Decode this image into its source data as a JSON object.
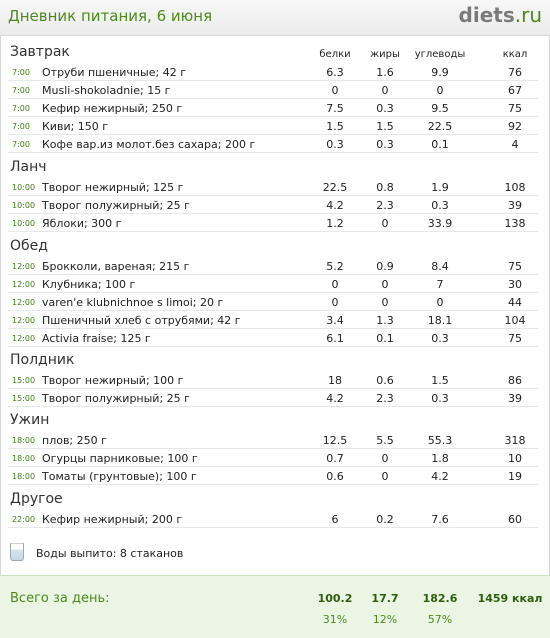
{
  "header": {
    "title": "Дневник питания, 6 июня",
    "logo_main": "diets",
    "logo_tld": ".ru"
  },
  "columns": {
    "protein": "белки",
    "fat": "жиры",
    "carbs": "углеводы",
    "kcal": "ккал"
  },
  "meals": [
    {
      "title": "Завтрак",
      "items": [
        {
          "time": "7:00",
          "name": "Отруби пшеничные; 42 г",
          "protein": "6.3",
          "fat": "1.6",
          "carbs": "9.9",
          "kcal": "76"
        },
        {
          "time": "7:00",
          "name": "Musli-shokoladnie; 15 г",
          "protein": "0",
          "fat": "0",
          "carbs": "0",
          "kcal": "67"
        },
        {
          "time": "7:00",
          "name": "Кефир нежирный; 250 г",
          "protein": "7.5",
          "fat": "0.3",
          "carbs": "9.5",
          "kcal": "75"
        },
        {
          "time": "7:00",
          "name": "Киви; 150 г",
          "protein": "1.5",
          "fat": "1.5",
          "carbs": "22.5",
          "kcal": "92"
        },
        {
          "time": "7:00",
          "name": "Кофе вар.из молот.без сахара; 200 г",
          "protein": "0.3",
          "fat": "0.3",
          "carbs": "0.1",
          "kcal": "4"
        }
      ]
    },
    {
      "title": "Ланч",
      "items": [
        {
          "time": "10:00",
          "name": "Творог нежирный; 125 г",
          "protein": "22.5",
          "fat": "0.8",
          "carbs": "1.9",
          "kcal": "108"
        },
        {
          "time": "10:00",
          "name": "Творог полужирный; 25 г",
          "protein": "4.2",
          "fat": "2.3",
          "carbs": "0.3",
          "kcal": "39"
        },
        {
          "time": "10:00",
          "name": "Яблоки; 300 г",
          "protein": "1.2",
          "fat": "0",
          "carbs": "33.9",
          "kcal": "138"
        }
      ]
    },
    {
      "title": "Обед",
      "items": [
        {
          "time": "12:00",
          "name": "Брокколи, вареная; 215 г",
          "protein": "5.2",
          "fat": "0.9",
          "carbs": "8.4",
          "kcal": "75"
        },
        {
          "time": "12:00",
          "name": "Клубника; 100 г",
          "protein": "0",
          "fat": "0",
          "carbs": "7",
          "kcal": "30"
        },
        {
          "time": "12:00",
          "name": "varen'e klubnichnoe s limoi; 20 г",
          "protein": "0",
          "fat": "0",
          "carbs": "0",
          "kcal": "44"
        },
        {
          "time": "12:00",
          "name": "Пшеничный хлеб с отрубями; 42 г",
          "protein": "3.4",
          "fat": "1.3",
          "carbs": "18.1",
          "kcal": "104"
        },
        {
          "time": "12:00",
          "name": "Activia fraise; 125 г",
          "protein": "6.1",
          "fat": "0.1",
          "carbs": "0.3",
          "kcal": "75"
        }
      ]
    },
    {
      "title": "Полдник",
      "items": [
        {
          "time": "15:00",
          "name": "Творог нежирный; 100 г",
          "protein": "18",
          "fat": "0.6",
          "carbs": "1.5",
          "kcal": "86"
        },
        {
          "time": "15:00",
          "name": "Творог полужирный; 25 г",
          "protein": "4.2",
          "fat": "2.3",
          "carbs": "0.3",
          "kcal": "39"
        }
      ]
    },
    {
      "title": "Ужин",
      "items": [
        {
          "time": "18:00",
          "name": "плов; 250 г",
          "protein": "12.5",
          "fat": "5.5",
          "carbs": "55.3",
          "kcal": "318"
        },
        {
          "time": "18:00",
          "name": "Огурцы парниковые; 100 г",
          "protein": "0.7",
          "fat": "0",
          "carbs": "1.8",
          "kcal": "10"
        },
        {
          "time": "18:00",
          "name": "Томаты (грунтовые); 100 г",
          "protein": "0.6",
          "fat": "0",
          "carbs": "4.2",
          "kcal": "19"
        }
      ]
    },
    {
      "title": "Другое",
      "items": [
        {
          "time": "22:00",
          "name": "Кефир нежирный; 200 г",
          "protein": "6",
          "fat": "0.2",
          "carbs": "7.6",
          "kcal": "60"
        }
      ]
    }
  ],
  "water": {
    "icon": "water-glass-icon",
    "text": "Воды выпито: 8 стаканов"
  },
  "totals": {
    "label": "Всего за день:",
    "protein": "100.2",
    "fat": "17.7",
    "carbs": "182.6",
    "kcal": "1459 ккал",
    "protein_pct": "31%",
    "fat_pct": "12%",
    "carbs_pct": "57%"
  },
  "colors": {
    "accent_green": "#4d8a1b",
    "footer_bg": "#eaf6e3"
  }
}
